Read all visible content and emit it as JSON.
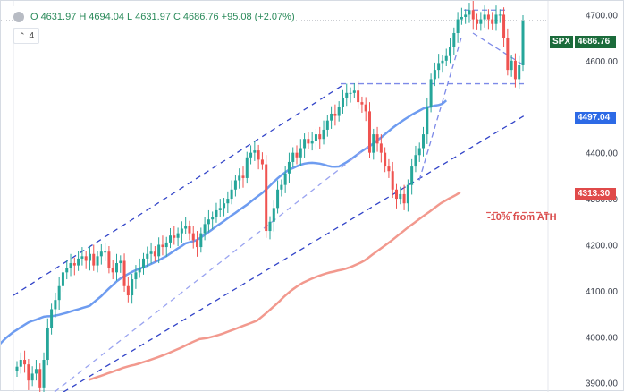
{
  "legend": {
    "open_label": "O",
    "open": "4631.97",
    "high_label": "H",
    "high": "4694.04",
    "low_label": "L",
    "low": "4631.97",
    "close_label": "C",
    "close": "4686.76",
    "change": "+95.08 (+2.07%)",
    "collapse_icon": "chevron-up-icon",
    "indicator_count": "4"
  },
  "price_axis": {
    "ticks": [
      "4700.00",
      "4600.00",
      "4400.00",
      "4300.00",
      "4200.00",
      "4100.00",
      "4000.00",
      "3900.00"
    ]
  },
  "tags": {
    "symbol": "SPX",
    "last_price": "4686.76",
    "ma_price": "4497.04",
    "target_price": "4313.30"
  },
  "annotation": {
    "text": "-10% from ATH"
  },
  "colors": {
    "up": "#26a69a",
    "down": "#ef5350",
    "ma_fast": "#6e9cf0",
    "ma_slow": "#f2998e",
    "channel": "#3244c8",
    "symbol_tag": "#1b6b3b",
    "ma_tag": "#2d6ae6",
    "target_tag": "#e04a4a"
  },
  "chart_data": {
    "type": "candlestick",
    "symbol": "SPX",
    "last": {
      "open": 4631.97,
      "high": 4694.04,
      "low": 4631.97,
      "close": 4686.76,
      "change": 95.08,
      "change_pct": 2.07
    },
    "ylim": [
      3880,
      4730
    ],
    "y_ticks": [
      3900,
      4000,
      4100,
      4200,
      4300,
      4400,
      4600,
      4700
    ],
    "levels": {
      "ma_fast_last": 4497.04,
      "ma_slow_last": 4313.3,
      "ten_pct_from_ath": 4270
    },
    "closes": [
      3935,
      3950,
      3940,
      3905,
      3920,
      3930,
      3890,
      3950,
      4020,
      4060,
      4080,
      4110,
      4140,
      4150,
      4160,
      4155,
      4170,
      4175,
      4165,
      4180,
      4155,
      4175,
      4185,
      4185,
      4150,
      4140,
      4160,
      4165,
      4110,
      4090,
      4125,
      4140,
      4150,
      4170,
      4180,
      4185,
      4175,
      4200,
      4195,
      4205,
      4220,
      4215,
      4225,
      4235,
      4240,
      4225,
      4210,
      4195,
      4225,
      4245,
      4255,
      4260,
      4275,
      4280,
      4290,
      4300,
      4320,
      4340,
      4350,
      4345,
      4390,
      4400,
      4405,
      4385,
      4375,
      4230,
      4250,
      4280,
      4320,
      4330,
      4355,
      4380,
      4400,
      4390,
      4410,
      4430,
      4420,
      4425,
      4440,
      4430,
      4450,
      4470,
      4485,
      4480,
      4500,
      4520,
      4530,
      4530,
      4535,
      4510,
      4505,
      4490,
      4400,
      4440,
      4420,
      4400,
      4370,
      4360,
      4320,
      4300,
      4310,
      4290,
      4330,
      4370,
      4395,
      4410,
      4440,
      4500,
      4560,
      4580,
      4595,
      4600,
      4610,
      4630,
      4660,
      4690,
      4695,
      4700,
      4710,
      4690,
      4680,
      4690,
      4700,
      4690,
      4680,
      4700,
      4700,
      4650,
      4580,
      4600,
      4560,
      4590,
      4687
    ]
  }
}
